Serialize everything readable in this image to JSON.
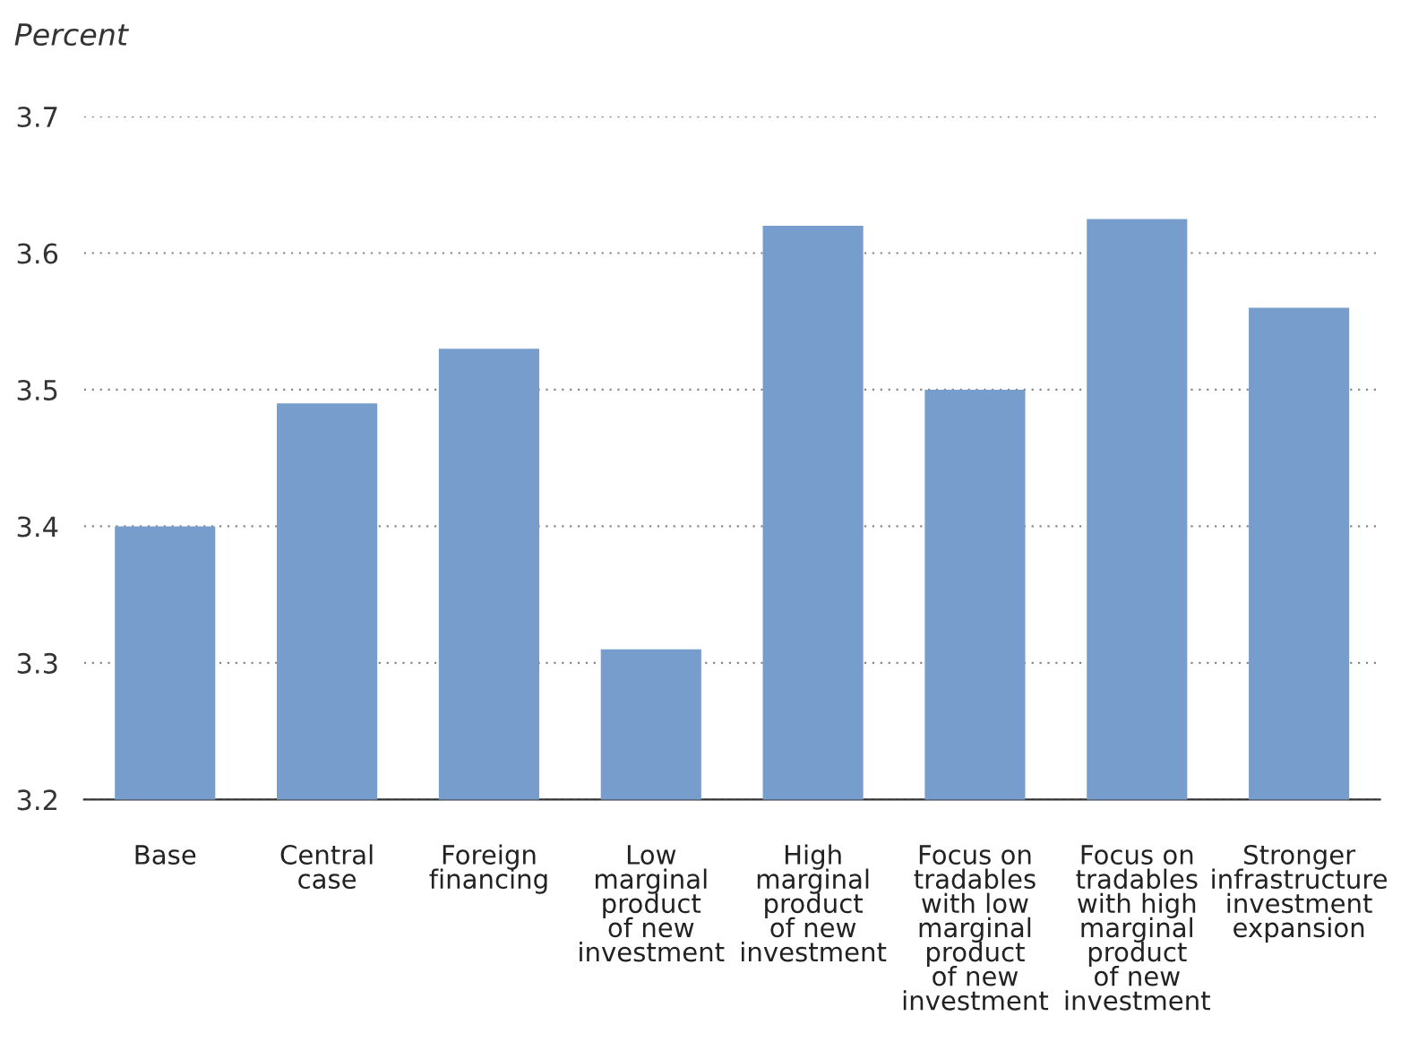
{
  "chart_data": {
    "type": "bar",
    "ylabel": "Percent",
    "categories": [
      "Base",
      "Central\ncase",
      "Foreign\nfinancing",
      "Low\nmarginal\nproduct\nof new\ninvestment",
      "High\nmarginal\nproduct\nof new\ninvestment",
      "Focus on\ntradables\nwith low\nmarginal\nproduct\nof new\ninvestment",
      "Focus on\ntradables\nwith high\nmarginal\nproduct\nof new\ninvestment",
      "Stronger\ninfrastructure\ninvestment\nexpansion"
    ],
    "values": [
      3.4,
      3.49,
      3.53,
      3.31,
      3.62,
      3.5,
      3.625,
      3.56
    ],
    "color": "#769dcb",
    "ylim": [
      3.2,
      3.7
    ],
    "yticks": [
      3.2,
      3.3,
      3.4,
      3.5,
      3.6,
      3.7
    ],
    "grid": "y"
  }
}
